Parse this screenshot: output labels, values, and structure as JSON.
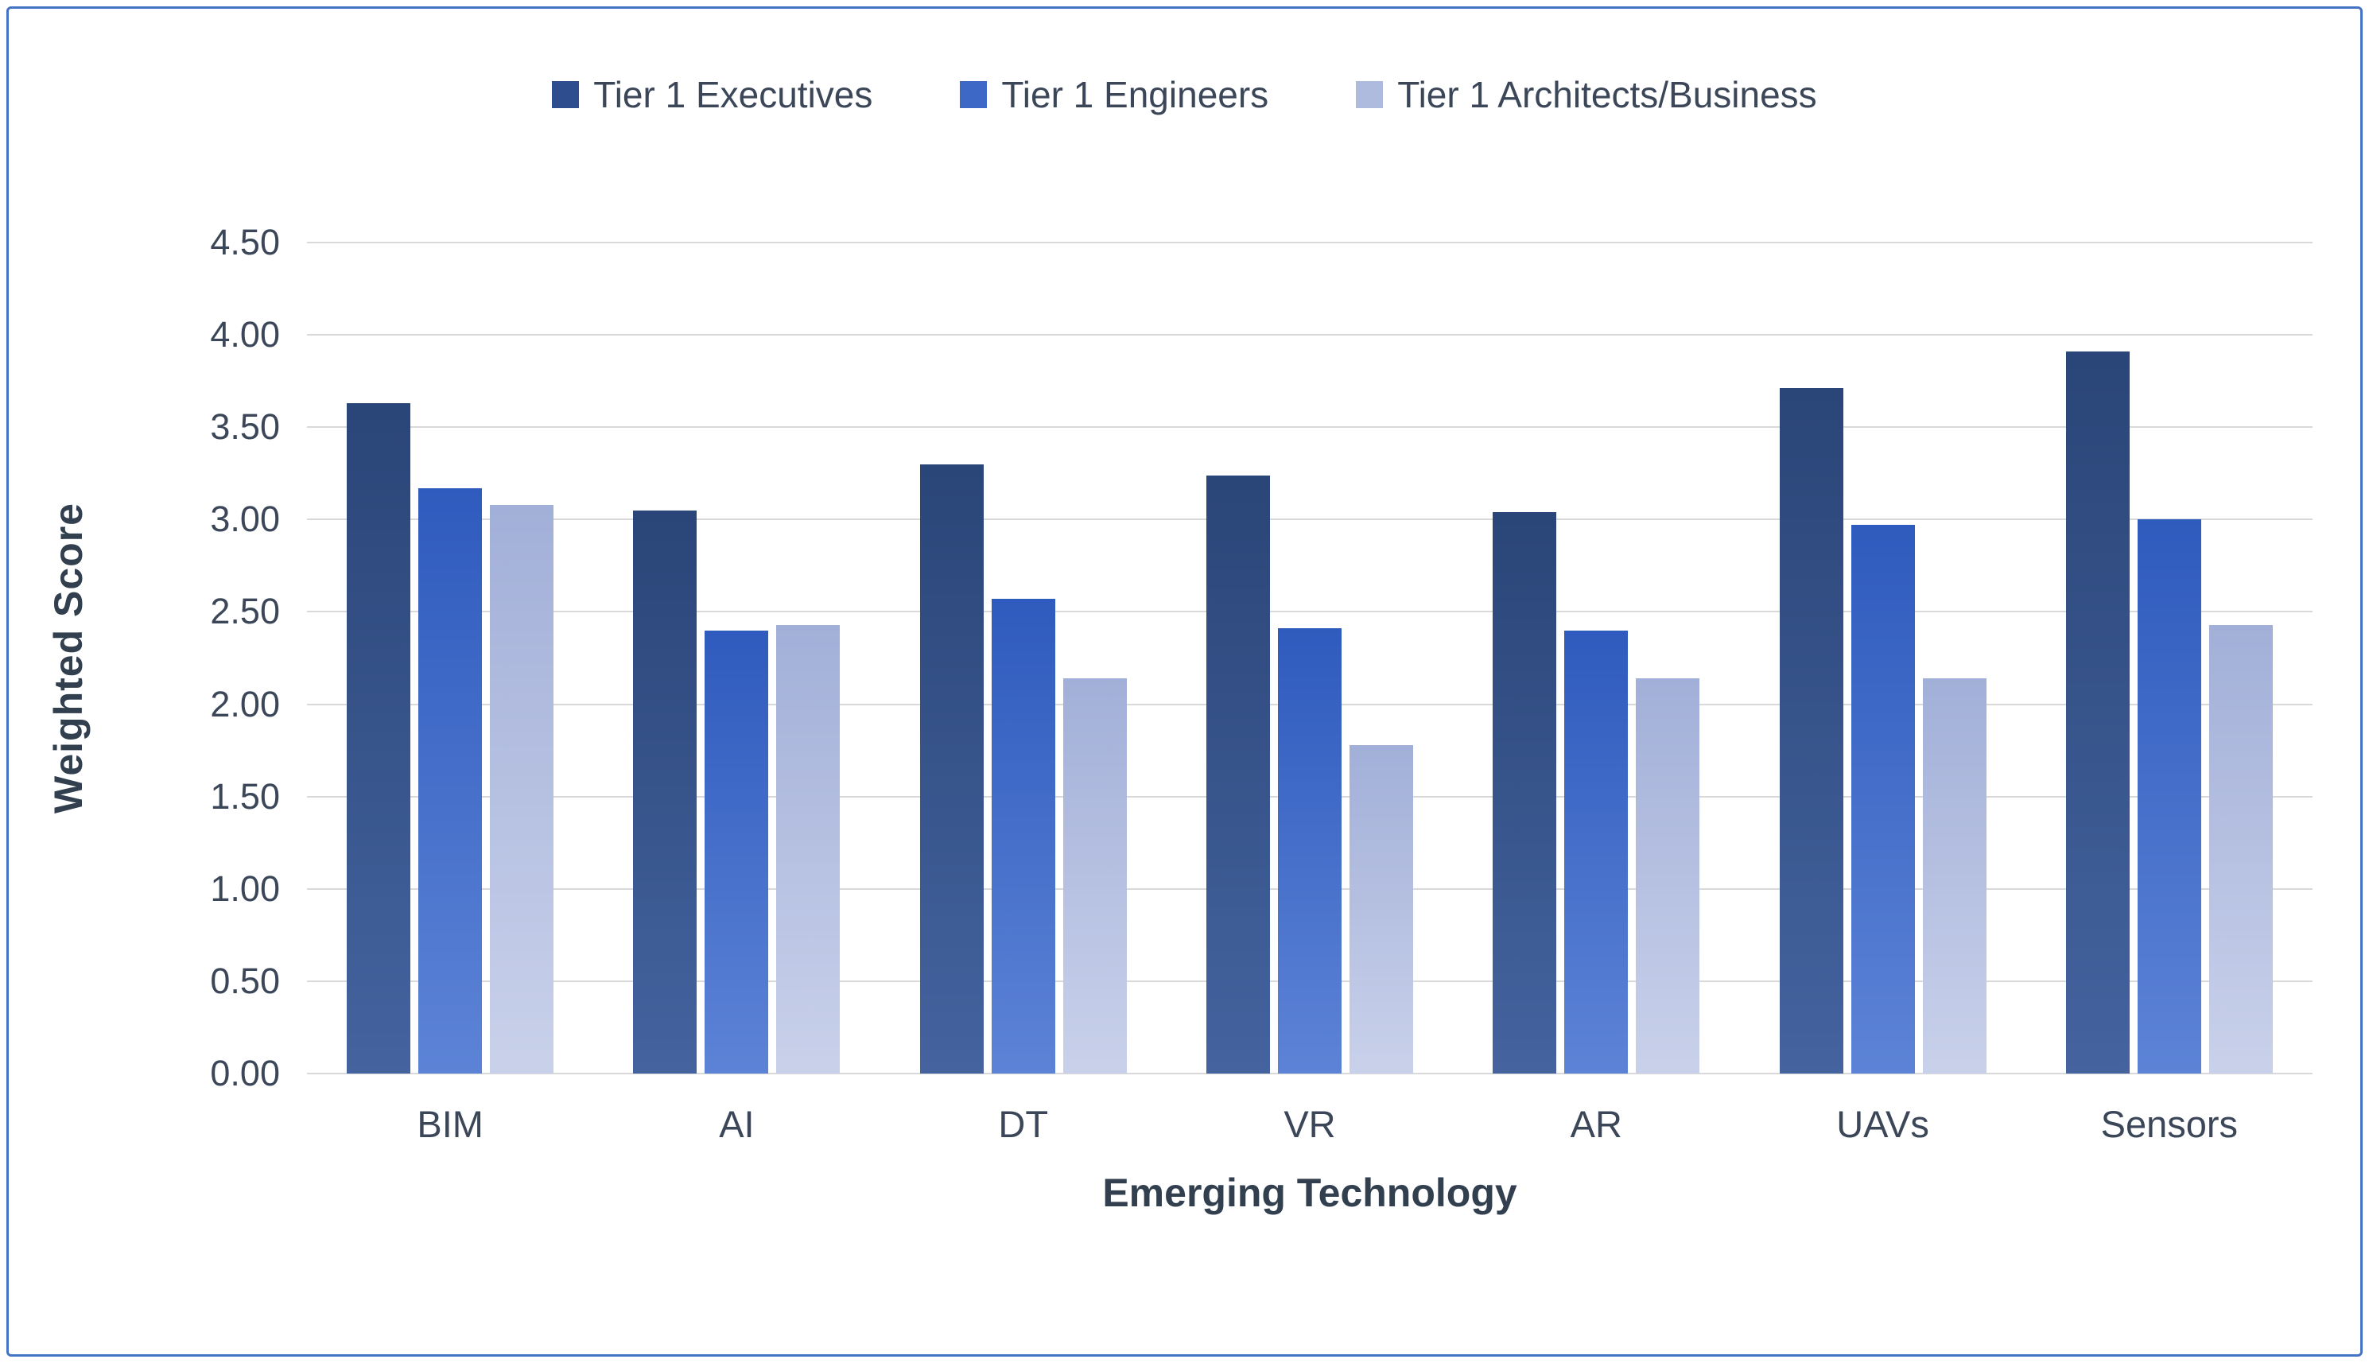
{
  "figure": {
    "border_color": "#4472C4",
    "background": "#FFFFFF",
    "gridline_color": "#D9D9D9"
  },
  "chart_data": {
    "type": "bar",
    "title": "",
    "xlabel": "Emerging Technology",
    "ylabel": "Weighted Score",
    "categories": [
      "BIM",
      "AI",
      "DT",
      "VR",
      "AR",
      "UAVs",
      "Sensors"
    ],
    "series": [
      {
        "name": "Tier 1 Executives",
        "color": "#2E4D8E",
        "gradient": [
          "#2A4577",
          "#44639F"
        ],
        "values": [
          3.63,
          3.05,
          3.3,
          3.24,
          3.04,
          3.71,
          3.91
        ]
      },
      {
        "name": "Tier 1 Engineers",
        "color": "#3E68C6",
        "gradient": [
          "#2F5BBE",
          "#5C83D6"
        ],
        "values": [
          3.17,
          2.4,
          2.57,
          2.41,
          2.4,
          2.97,
          3.0
        ]
      },
      {
        "name": "Tier 1 Architects/Business",
        "color": "#AFBADF",
        "gradient": [
          "#A2AFD8",
          "#C9D1EA"
        ],
        "values": [
          3.08,
          2.43,
          2.14,
          1.78,
          2.14,
          2.14,
          2.43
        ]
      }
    ],
    "ylim": [
      0,
      4.5
    ],
    "ytick_step": 0.5,
    "ytick_labels": [
      "0.00",
      "0.50",
      "1.00",
      "1.50",
      "2.00",
      "2.50",
      "3.00",
      "3.50",
      "4.00",
      "4.50"
    ],
    "grid": true,
    "legend_position": "top"
  }
}
